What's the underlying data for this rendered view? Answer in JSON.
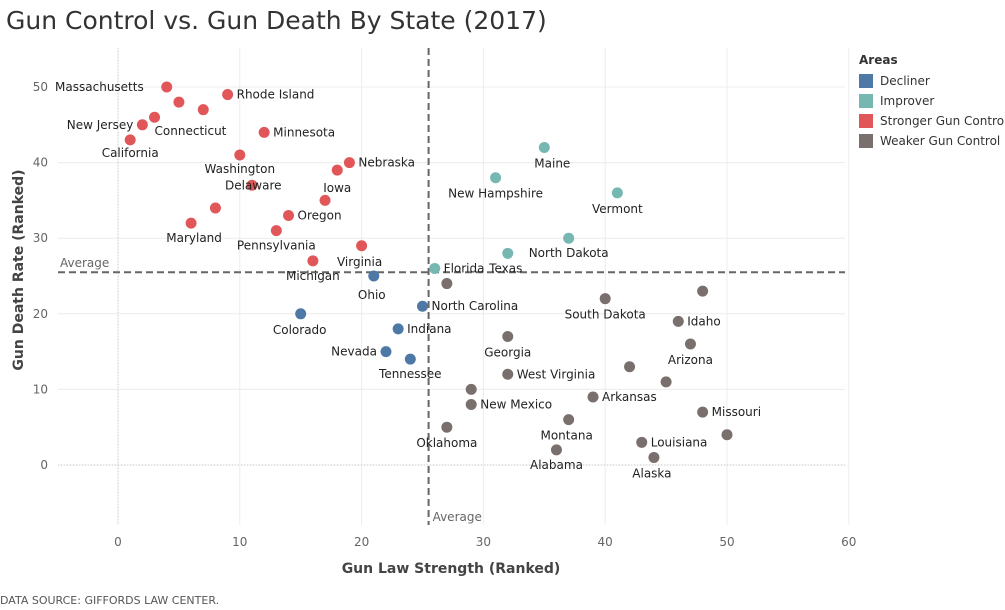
{
  "title": "Gun Control vs. Gun Death By State (2017)",
  "source": "DATA SOURCE: GIFFORDS LAW CENTER.",
  "legend": {
    "title": "Areas",
    "items": [
      {
        "label": "Decliner",
        "color": "#4e79a7"
      },
      {
        "label": "Improver",
        "color": "#76b7b2"
      },
      {
        "label": "Stronger Gun Control",
        "color": "#e15759"
      },
      {
        "label": "Weaker Gun Control",
        "color": "#79706e"
      }
    ]
  },
  "chart_data": {
    "type": "scatter",
    "title": "Gun Control vs. Gun Death By State (2017)",
    "xlabel": "Gun Law Strength (Ranked)",
    "ylabel": "Gun Death Rate (Ranked)",
    "xlim": [
      -5,
      60
    ],
    "ylim": [
      -8,
      55
    ],
    "xticks": [
      0,
      10,
      20,
      30,
      40,
      50,
      60
    ],
    "yticks": [
      0,
      10,
      20,
      30,
      40,
      50
    ],
    "reference_lines": [
      {
        "axis": "x",
        "value": 25.5,
        "label": "Average"
      },
      {
        "axis": "y",
        "value": 25.5,
        "label": "Average"
      }
    ],
    "legend_position": "right",
    "series": [
      {
        "name": "Stronger Gun Control",
        "color": "#e15759",
        "points": [
          {
            "x": 4,
            "y": 50,
            "label": "Massachusetts"
          },
          {
            "x": 9,
            "y": 49,
            "label": "Rhode Island"
          },
          {
            "x": 5,
            "y": 48,
            "label": ""
          },
          {
            "x": 7,
            "y": 47,
            "label": ""
          },
          {
            "x": 3,
            "y": 46,
            "label": "Connecticut"
          },
          {
            "x": 2,
            "y": 45,
            "label": "New Jersey"
          },
          {
            "x": 12,
            "y": 44,
            "label": "Minnesota"
          },
          {
            "x": 1,
            "y": 43,
            "label": "California"
          },
          {
            "x": 10,
            "y": 41,
            "label": "Washington"
          },
          {
            "x": 19,
            "y": 40,
            "label": "Nebraska"
          },
          {
            "x": 18,
            "y": 39,
            "label": "Iowa"
          },
          {
            "x": 11,
            "y": 37,
            "label": "Delaware"
          },
          {
            "x": 17,
            "y": 35,
            "label": ""
          },
          {
            "x": 8,
            "y": 34,
            "label": ""
          },
          {
            "x": 14,
            "y": 33,
            "label": "Oregon"
          },
          {
            "x": 6,
            "y": 32,
            "label": "Maryland"
          },
          {
            "x": 13,
            "y": 31,
            "label": "Pennsylvania"
          },
          {
            "x": 20,
            "y": 29,
            "label": "Virginia"
          },
          {
            "x": 16,
            "y": 27,
            "label": "Michigan"
          }
        ]
      },
      {
        "name": "Improver",
        "color": "#76b7b2",
        "points": [
          {
            "x": 35,
            "y": 42,
            "label": "Maine"
          },
          {
            "x": 31,
            "y": 38,
            "label": "New Hampshire"
          },
          {
            "x": 41,
            "y": 36,
            "label": "Vermont"
          },
          {
            "x": 37,
            "y": 30,
            "label": "North Dakota"
          },
          {
            "x": 32,
            "y": 28,
            "label": "Texas"
          },
          {
            "x": 26,
            "y": 26,
            "label": "Florida"
          }
        ]
      },
      {
        "name": "Decliner",
        "color": "#4e79a7",
        "points": [
          {
            "x": 21,
            "y": 25,
            "label": "Ohio"
          },
          {
            "x": 25,
            "y": 21,
            "label": "North Carolina"
          },
          {
            "x": 15,
            "y": 20,
            "label": "Colorado"
          },
          {
            "x": 23,
            "y": 18,
            "label": "Indiana"
          },
          {
            "x": 22,
            "y": 15,
            "label": "Nevada"
          },
          {
            "x": 24,
            "y": 14,
            "label": "Tennessee"
          }
        ]
      },
      {
        "name": "Weaker Gun Control",
        "color": "#79706e",
        "points": [
          {
            "x": 27,
            "y": 24,
            "label": ""
          },
          {
            "x": 48,
            "y": 23,
            "label": ""
          },
          {
            "x": 40,
            "y": 22,
            "label": "South Dakota"
          },
          {
            "x": 46,
            "y": 19,
            "label": "Idaho"
          },
          {
            "x": 32,
            "y": 17,
            "label": "Georgia"
          },
          {
            "x": 47,
            "y": 16,
            "label": "Arizona"
          },
          {
            "x": 42,
            "y": 13,
            "label": ""
          },
          {
            "x": 32,
            "y": 12,
            "label": "West Virginia"
          },
          {
            "x": 45,
            "y": 11,
            "label": ""
          },
          {
            "x": 29,
            "y": 10,
            "label": ""
          },
          {
            "x": 39,
            "y": 9,
            "label": "Arkansas"
          },
          {
            "x": 29,
            "y": 8,
            "label": "New Mexico"
          },
          {
            "x": 48,
            "y": 7,
            "label": "Missouri"
          },
          {
            "x": 37,
            "y": 6,
            "label": "Montana"
          },
          {
            "x": 27,
            "y": 5,
            "label": "Oklahoma"
          },
          {
            "x": 50,
            "y": 4,
            "label": ""
          },
          {
            "x": 43,
            "y": 3,
            "label": "Louisiana"
          },
          {
            "x": 36,
            "y": 2,
            "label": "Alabama"
          },
          {
            "x": 44,
            "y": 1,
            "label": "Alaska"
          }
        ]
      }
    ]
  }
}
